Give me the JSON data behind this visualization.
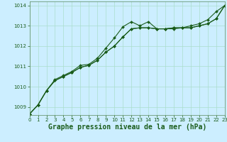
{
  "background_color": "#cceeff",
  "grid_color": "#aaddcc",
  "line_color": "#1a5c1a",
  "marker_color": "#1a5c1a",
  "xlabel": "Graphe pression niveau de la mer (hPa)",
  "xlabel_fontsize": 7,
  "xticks": [
    0,
    1,
    2,
    3,
    4,
    5,
    6,
    7,
    8,
    9,
    10,
    11,
    12,
    13,
    14,
    15,
    16,
    17,
    18,
    19,
    20,
    21,
    22,
    23
  ],
  "yticks": [
    1009,
    1010,
    1011,
    1012,
    1013,
    1014
  ],
  "xlim": [
    0,
    23
  ],
  "ylim": [
    1008.6,
    1014.2
  ],
  "series1_x": [
    0,
    1,
    2,
    3,
    4,
    5,
    6,
    7,
    8,
    9,
    10,
    11,
    12,
    13,
    14,
    15,
    16,
    17,
    18,
    19,
    20,
    21,
    22,
    23
  ],
  "series1_y": [
    1008.65,
    1009.1,
    1009.8,
    1010.35,
    1010.55,
    1010.75,
    1011.05,
    1011.1,
    1011.4,
    1011.9,
    1012.4,
    1012.95,
    1013.2,
    1013.0,
    1013.2,
    1012.85,
    1012.85,
    1012.85,
    1012.9,
    1013.0,
    1013.1,
    1013.3,
    1013.7,
    1014.0
  ],
  "series2_x": [
    0,
    1,
    2,
    3,
    4,
    5,
    6,
    7,
    8,
    9,
    10,
    11,
    12,
    13,
    14,
    15,
    16,
    17,
    18,
    19,
    20,
    21,
    22,
    23
  ],
  "series2_y": [
    1008.65,
    1009.1,
    1009.8,
    1010.3,
    1010.5,
    1010.7,
    1010.95,
    1011.05,
    1011.3,
    1011.7,
    1012.0,
    1012.45,
    1012.85,
    1012.9,
    1012.9,
    1012.85,
    1012.85,
    1012.9,
    1012.9,
    1012.9,
    1013.0,
    1013.1,
    1013.35,
    1014.0
  ],
  "series3_x": [
    0,
    1,
    2,
    3,
    4,
    5,
    6,
    7,
    8,
    9,
    10,
    11,
    12,
    13,
    14,
    15,
    16,
    17,
    18,
    19,
    20,
    21,
    22,
    23
  ],
  "series3_y": [
    1008.65,
    1009.1,
    1009.8,
    1010.3,
    1010.5,
    1010.7,
    1010.95,
    1011.05,
    1011.3,
    1011.7,
    1012.0,
    1012.45,
    1012.85,
    1012.9,
    1012.9,
    1012.85,
    1012.85,
    1012.9,
    1012.9,
    1012.9,
    1013.0,
    1013.1,
    1013.35,
    1014.0
  ]
}
